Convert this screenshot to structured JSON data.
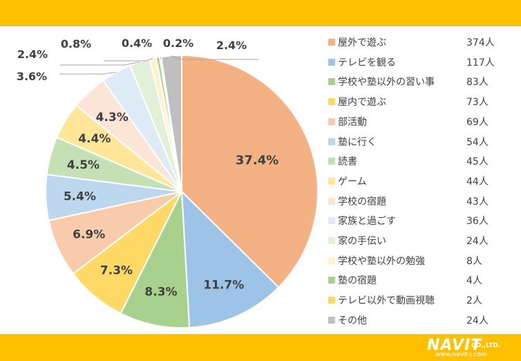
{
  "chart_data": {
    "type": "pie",
    "categories": [
      "屋外で遊ぶ",
      "テレビを観る",
      "学校や塾以外の習い事",
      "屋内で遊ぶ",
      "部活動",
      "塾に行く",
      "読書",
      "ゲーム",
      "学校の宿題",
      "家族と過ごす",
      "家の手伝い",
      "学校や塾以外の勉強",
      "塾の宿題",
      "テレビ以外で動画視聴",
      "その他"
    ],
    "counts": [
      "374人",
      "117人",
      "83人",
      "73人",
      "69人",
      "54人",
      "45人",
      "44人",
      "43人",
      "36人",
      "24人",
      "8人",
      "4人",
      "2人",
      "24人"
    ],
    "values": [
      37.4,
      11.7,
      8.3,
      7.3,
      6.9,
      5.4,
      4.5,
      4.4,
      4.3,
      3.6,
      2.4,
      0.8,
      0.4,
      0.2,
      2.4
    ],
    "labels": [
      "37.4%",
      "11.7%",
      "8.3%",
      "7.3%",
      "6.9%",
      "5.4%",
      "4.5%",
      "4.4%",
      "4.3%",
      "3.6%",
      "2.4%",
      "0.8%",
      "0.4%",
      "0.2%",
      "2.4%"
    ],
    "colors": [
      "#F4B183",
      "#9DC3E6",
      "#A9D18E",
      "#FFD966",
      "#F8CBAD",
      "#BDD7EE",
      "#C5E0B4",
      "#FFE699",
      "#FBE5D6",
      "#DEEBF7",
      "#E2F0D9",
      "#FFF2CC",
      "#A9D18E",
      "#FFD966",
      "#BFBFBF"
    ]
  },
  "brand": {
    "name": "NAVIT",
    "suffix": "CO.,LTD.",
    "url": "www.navit-j.com"
  }
}
